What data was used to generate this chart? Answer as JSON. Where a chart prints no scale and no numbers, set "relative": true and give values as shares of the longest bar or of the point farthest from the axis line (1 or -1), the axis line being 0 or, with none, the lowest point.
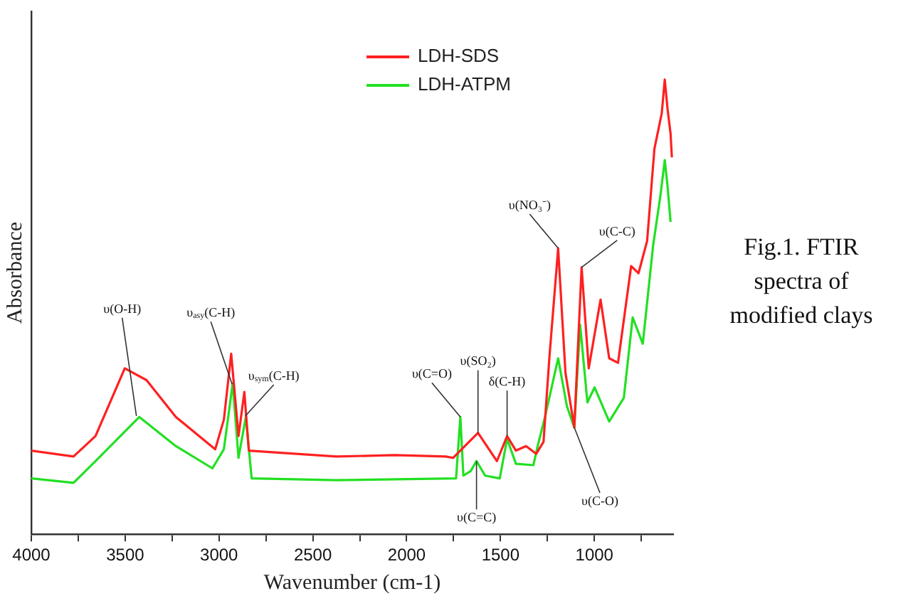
{
  "chart_data": {
    "type": "line",
    "relative": true,
    "xlabel": "Wavenumber (cm-1)",
    "ylabel": "Absorbance",
    "xlim": [
      4000,
      580
    ],
    "xticks": [
      4000,
      {
        "value": 3750,
        "label": null
      },
      3500,
      {
        "value": 3250,
        "label": null
      },
      3000,
      {
        "value": 2750,
        "label": null
      },
      2500,
      {
        "value": 2250,
        "label": null
      },
      2000,
      {
        "value": 1750,
        "label": null
      },
      1500,
      {
        "value": 1250,
        "label": null
      },
      1000,
      {
        "value": 750,
        "label": null
      }
    ],
    "grid": false,
    "legend": "top right",
    "marker": "none",
    "line_style": "solid",
    "series": [
      {
        "name": "LDH-SDS",
        "color": "#ff2020",
        "x": [
          4000,
          3775,
          3658,
          3502,
          3386,
          3230,
          3020,
          2974,
          2935,
          2896,
          2865,
          2841,
          2375,
          2064,
          1792,
          1753,
          1620,
          1519,
          1465,
          1418,
          1364,
          1310,
          1271,
          1240,
          1193,
          1154,
          1107,
          1068,
          1030,
          967,
          921,
          874,
          804,
          765,
          719,
          680,
          641,
          625,
          610,
          594,
          587
        ],
        "values": [
          0.184,
          0.171,
          0.216,
          0.365,
          0.339,
          0.258,
          0.187,
          0.252,
          0.397,
          0.216,
          0.313,
          0.184,
          0.171,
          0.174,
          0.171,
          0.168,
          0.223,
          0.161,
          0.216,
          0.184,
          0.194,
          0.177,
          0.203,
          0.387,
          0.629,
          0.355,
          0.235,
          0.587,
          0.365,
          0.516,
          0.387,
          0.377,
          0.59,
          0.574,
          0.645,
          0.848,
          0.926,
          1.0,
          0.935,
          0.881,
          0.829
        ]
      },
      {
        "name": "LDH-ATPM",
        "color": "#22e022",
        "x": [
          4000,
          3775,
          3658,
          3425,
          3230,
          3035,
          2974,
          2927,
          2896,
          2857,
          2826,
          2375,
          1737,
          1714,
          1698,
          1659,
          1628,
          1582,
          1504,
          1465,
          1418,
          1325,
          1302,
          1263,
          1193,
          1146,
          1107,
          1076,
          1037,
          999,
          921,
          843,
          796,
          742,
          687,
          649,
          625,
          610,
          594
        ],
        "values": [
          0.123,
          0.113,
          0.161,
          0.258,
          0.194,
          0.145,
          0.187,
          0.332,
          0.168,
          0.258,
          0.123,
          0.119,
          0.123,
          0.258,
          0.129,
          0.139,
          0.161,
          0.129,
          0.123,
          0.21,
          0.155,
          0.152,
          0.194,
          0.258,
          0.387,
          0.281,
          0.235,
          0.461,
          0.29,
          0.323,
          0.248,
          0.3,
          0.477,
          0.419,
          0.635,
          0.742,
          0.823,
          0.765,
          0.687
        ]
      }
    ],
    "annotations": [
      {
        "text": "υ(O-H)",
        "x": 3440,
        "y": 0.26
      },
      {
        "text": "υ$_{asy}$(C-H)",
        "x": 2930,
        "y": 0.33
      },
      {
        "text": "υ$_{sym}$(C-H)",
        "x": 2860,
        "y": 0.26
      },
      {
        "text": "υ(C=O)",
        "x": 1714,
        "y": 0.258
      },
      {
        "text": "υ(SO₂)",
        "x": 1620,
        "y": 0.223
      },
      {
        "text": "υ(C=C)",
        "x": 1628,
        "y": 0.161
      },
      {
        "text": "δ(C-H)",
        "x": 1465,
        "y": 0.216
      },
      {
        "text": "υ(NO₃⁻)",
        "x": 1193,
        "y": 0.629
      },
      {
        "text": "υ(C-C)",
        "x": 1068,
        "y": 0.587
      },
      {
        "text": "υ(C-O)",
        "x": 1107,
        "y": 0.235
      },
      "Fig.1. FTIR spectra of modified clays"
    ]
  }
}
